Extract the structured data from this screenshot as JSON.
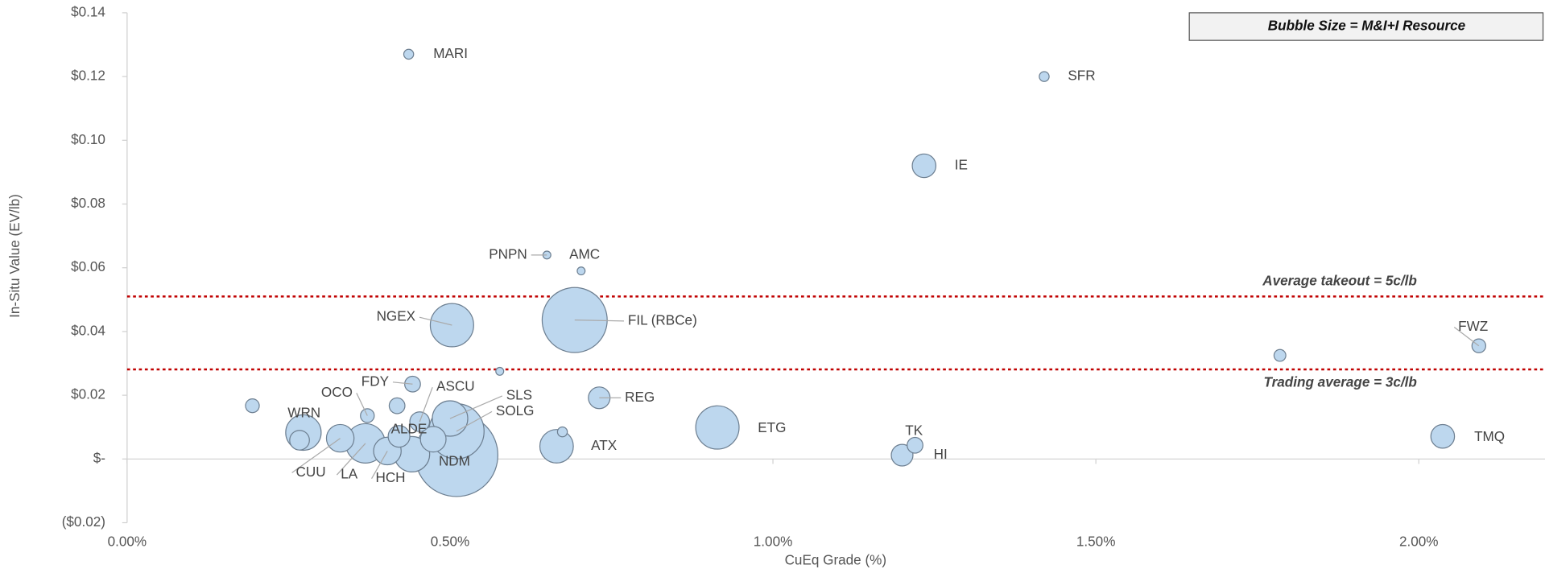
{
  "chart_data": {
    "type": "bubble",
    "x_label": "CuEq Grade (%)",
    "y_label": "In-Situ Value (EV/lb)",
    "annotation": "Bubble Size = M&I+I Resource",
    "reference_lines": [
      {
        "value": 0.051,
        "label": "Average takeout = 5c/lb"
      },
      {
        "value": 0.0281,
        "label": "Trading average = 3c/lb"
      }
    ],
    "ref_color": "#c00000",
    "color": "#bdd7ee",
    "edge_color": "#6d7f91",
    "xlim": [
      0,
      2.2
    ],
    "xticks": [
      {
        "value": 0,
        "label": "0.00%"
      },
      {
        "value": 0.5,
        "label": "0.50%"
      },
      {
        "value": 1,
        "label": "1.00%"
      },
      {
        "value": 1.5,
        "label": "1.50%"
      },
      {
        "value": 2,
        "label": "2.00%"
      }
    ],
    "ylim": [
      -0.02,
      0.14
    ],
    "yticks": [
      {
        "value": -0.02,
        "label": "($0.02)"
      },
      {
        "value": 0,
        "label": "$-"
      },
      {
        "value": 0.02,
        "label": "$0.02"
      },
      {
        "value": 0.04,
        "label": "$0.04"
      },
      {
        "value": 0.06,
        "label": "$0.06"
      },
      {
        "value": 0.08,
        "label": "$0.08"
      },
      {
        "value": 0.1,
        "label": "$0.10"
      },
      {
        "value": 0.12,
        "label": "$0.12"
      },
      {
        "value": 0.14,
        "label": "$0.14"
      }
    ],
    "labels": [
      "MARI",
      "SFR",
      "IE",
      "PNPN",
      "AMC",
      "NGEX",
      "FIL (RBCe)",
      null,
      "FWZ",
      null,
      "FDY",
      "ASCU",
      "OCO",
      null,
      null,
      "WRN",
      null,
      "CUU",
      "LA",
      "HCH",
      null,
      null,
      null,
      "SLS",
      "SOLG",
      "NDM",
      "ALDE",
      "REG",
      "ATX",
      "ETG",
      "TK",
      "HI",
      "TMQ"
    ],
    "x": [
      0.436,
      1.42,
      1.234,
      0.65,
      0.703,
      0.503,
      0.693,
      0.577,
      2.093,
      1.785,
      0.442,
      0.453,
      0.372,
      0.418,
      0.194,
      0.273,
      0.267,
      0.33,
      0.369,
      0.403,
      0.421,
      0.441,
      0.474,
      0.5,
      0.51,
      0.51,
      0.674,
      0.731,
      0.665,
      0.914,
      1.22,
      1.2,
      2.037
    ],
    "y": [
      0.127,
      0.12,
      0.092,
      0.064,
      0.059,
      0.042,
      0.0436,
      0.0275,
      0.0355,
      0.0325,
      0.0235,
      0.0117,
      0.0136,
      0.0167,
      0.0167,
      0.0083,
      0.0059,
      0.0065,
      0.0049,
      0.0025,
      0.0071,
      0.0015,
      0.0062,
      0.0127,
      0.0087,
      0.0012,
      0.0085,
      0.0192,
      0.004,
      0.0099,
      0.0043,
      0.0012,
      0.0071
    ],
    "sizes": [
      25,
      25,
      144,
      16,
      16,
      484,
      1089,
      16,
      49,
      36,
      64,
      100,
      49,
      64,
      49,
      324,
      100,
      196,
      400,
      196,
      121,
      324,
      169,
      324,
      784,
      1764,
      25,
      121,
      289,
      484,
      64,
      121,
      144
    ]
  }
}
